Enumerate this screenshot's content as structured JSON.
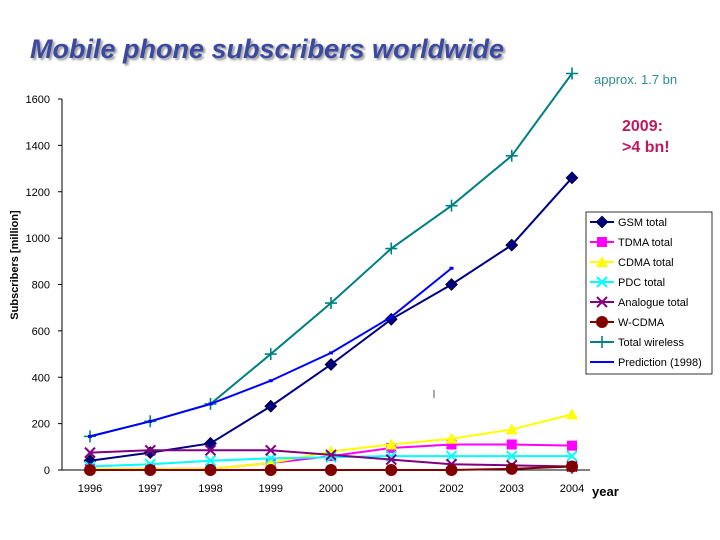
{
  "title": "Mobile phone subscribers worldwide",
  "annotations": {
    "approx": "approx. 1.7 bn",
    "forecast_line1": "2009:",
    "forecast_line2": ">4 bn!"
  },
  "chart_data": {
    "type": "line",
    "title": "Mobile phone subscribers worldwide",
    "xlabel": "year",
    "ylabel": "Subscribers [million]",
    "ylim": [
      0,
      1600
    ],
    "yticks": [
      0,
      200,
      400,
      600,
      800,
      1000,
      1200,
      1400,
      1600
    ],
    "categories": [
      "1996",
      "1997",
      "1998",
      "1999",
      "2000",
      "2001",
      "2002",
      "2003",
      "2004"
    ],
    "legend_position": "right",
    "series": [
      {
        "name": "GSM total",
        "color": "#000080",
        "marker": "diamond",
        "values": [
          40,
          75,
          115,
          275,
          455,
          650,
          800,
          970,
          1260
        ]
      },
      {
        "name": "TDMA total",
        "color": "#ff00ff",
        "marker": "square",
        "values": [
          5,
          5,
          5,
          30,
          60,
          95,
          110,
          110,
          105
        ]
      },
      {
        "name": "CDMA total",
        "color": "#ffff00",
        "marker": "triangle",
        "values": [
          5,
          5,
          5,
          30,
          80,
          110,
          135,
          175,
          240
        ]
      },
      {
        "name": "PDC total",
        "color": "#00ffff",
        "marker": "x",
        "values": [
          15,
          25,
          40,
          50,
          55,
          60,
          60,
          60,
          60
        ]
      },
      {
        "name": "Analogue total",
        "color": "#800080",
        "marker": "x",
        "values": [
          75,
          85,
          85,
          85,
          65,
          45,
          25,
          20,
          15
        ]
      },
      {
        "name": "W-CDMA",
        "color": "#800000",
        "marker": "circle",
        "values": [
          0,
          0,
          0,
          0,
          0,
          0,
          0,
          5,
          15
        ]
      },
      {
        "name": "Total wireless",
        "color": "#008080",
        "marker": "plus",
        "values": [
          145,
          210,
          285,
          500,
          720,
          955,
          1140,
          1355,
          1710
        ]
      },
      {
        "name": "Prediction (1998)",
        "color": "#0000ff",
        "marker": "none",
        "values": [
          145,
          210,
          285,
          385,
          505,
          660,
          870,
          null,
          null
        ]
      }
    ]
  }
}
